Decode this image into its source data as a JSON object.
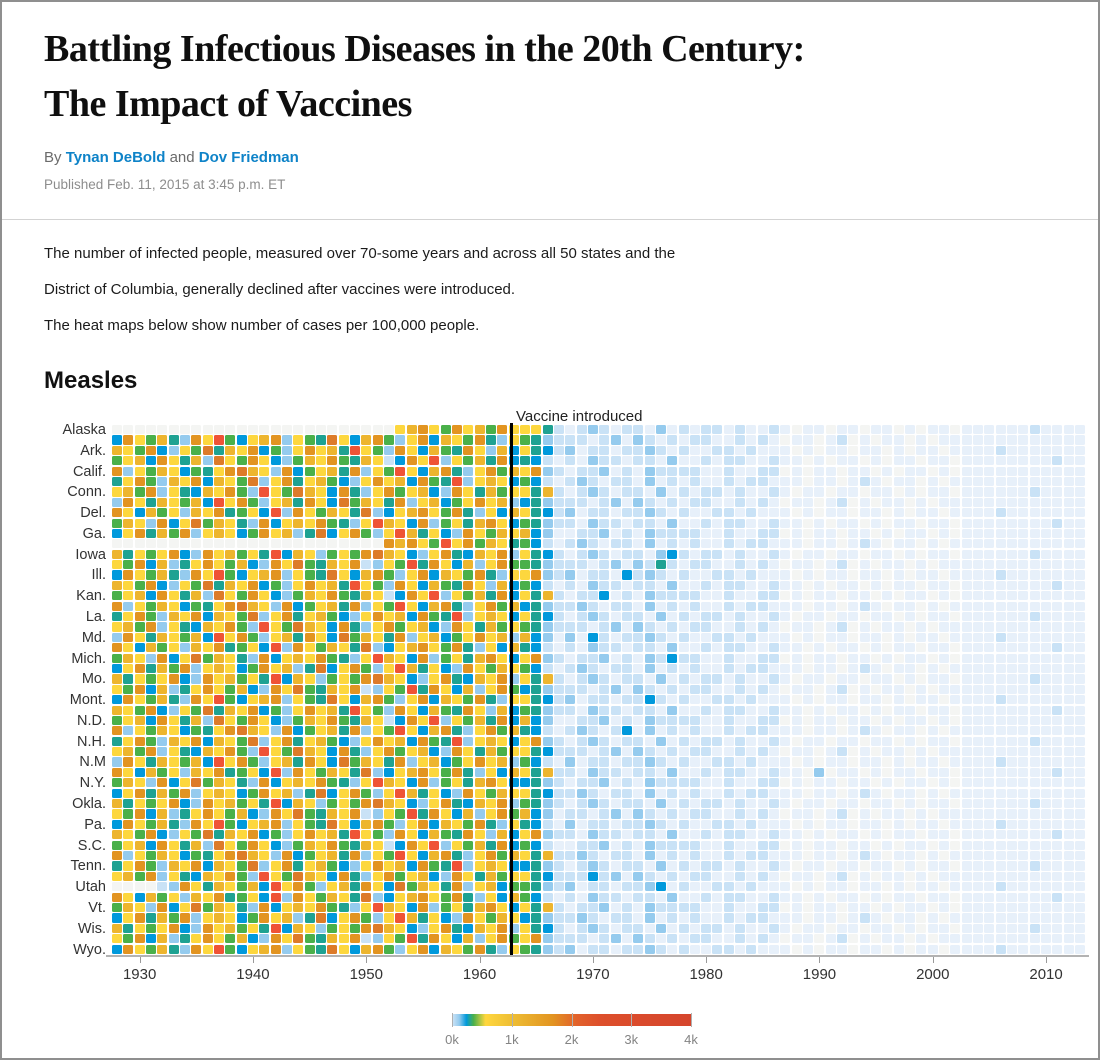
{
  "header": {
    "title_line1": "Battling Infectious Diseases in the 20th Century:",
    "title_line2": "The Impact of Vaccines",
    "byline_prefix": "By",
    "author1": "Tynan DeBold",
    "byline_connector": "and",
    "author2": "Dov Friedman",
    "published": "Published Feb. 11, 2015 at 3:45 p.m. ET"
  },
  "intro": {
    "para1_line1": "The number of infected people, measured over 70-some years and across all 50 states and the",
    "para1_line2": "District of Columbia, generally declined after vaccines were introduced.",
    "para2": "The heat maps below show number of cases per 100,000 people."
  },
  "section": {
    "heading": "Measles"
  },
  "chart_data": {
    "type": "heatmap",
    "title": "Measles",
    "unit": "cases per 100,000 people",
    "x_start_year": 1928,
    "x_end_year": 2013,
    "x_ticks": [
      "1930",
      "1940",
      "1950",
      "1960",
      "1970",
      "1980",
      "1990",
      "2000",
      "2010"
    ],
    "annotation": {
      "label": "Vaccine introduced",
      "year": 1963,
      "line_color": "#000000"
    },
    "row_labels": [
      "Alaska",
      "Ark.",
      "Calif.",
      "Conn.",
      "Del.",
      "Ga.",
      "Iowa",
      "Ill.",
      "Kan.",
      "La.",
      "Md.",
      "Mich.",
      "Mo.",
      "Mont.",
      "N.D.",
      "N.H.",
      "N.M",
      "N.Y.",
      "Okla.",
      "Pa.",
      "S.C.",
      "Tenn.",
      "Utah",
      "Vt.",
      "Wis.",
      "Wyo."
    ],
    "label_every": 2,
    "num_rows": 51,
    "value_range_cases": [
      0,
      4000
    ],
    "palette": {
      "0": "#f4f5f3",
      "1": "#e7f0fa",
      "2": "#c9e2f6",
      "3": "#95cbee",
      "4": "#6bb8e8",
      "5": "#0099dc",
      "6": "#1ea292",
      "7": "#4ab04a",
      "8": "#a5c13e",
      "9": "#fdd73e",
      "a": "#edb52e",
      "b": "#e29421",
      "c": "#dd7b29",
      "d": "#ef5336",
      "e": "#ce472e"
    },
    "legend": {
      "labels": [
        "0k",
        "1k",
        "2k",
        "3k",
        "4k"
      ],
      "tick_positions_pct": [
        0,
        25,
        50,
        75,
        100
      ],
      "gradient_stops": [
        {
          "pos": 0,
          "color": "#cfe4f6"
        },
        {
          "pos": 3,
          "color": "#95cbee"
        },
        {
          "pos": 6,
          "color": "#0099dc"
        },
        {
          "pos": 9,
          "color": "#4ab04a"
        },
        {
          "pos": 14,
          "color": "#ffd73e"
        },
        {
          "pos": 25,
          "color": "#eebe34"
        },
        {
          "pos": 42,
          "color": "#e29421"
        },
        {
          "pos": 52,
          "color": "#e2622b"
        },
        {
          "pos": 62,
          "color": "#dd4f2b"
        },
        {
          "pos": 100,
          "color": "#d5452c"
        }
      ]
    },
    "rows": [
      [
        "0000000000000000000000000",
        "9ab97b9a7b9",
        "9962",
        "1232122131",
        "212212112",
        "1011011011010110",
        "11111121111"
      ],
      [
        "5b97a63b9d759ab3976c95ab739b5a97b639",
        "7632",
        "2212313212",
        "122112121",
        "0110120101101011",
        "11111111111"
      ],
      [
        "a97b5397c6a9b5739b9a6d973b95a76b93a5",
        "9652",
        "3122122321",
        "211221211",
        "1010110110101101",
        "11121111111"
      ],
      [
        "79a5b96a3c97b9537a9b76a925b9d397a6b5",
        "6521",
        "2132212213",
        "112122112",
        "1101011010110110",
        "11111111211"
      ],
      [
        "b397a95769bca93b579a6b397d95ab639b7a",
        "9b32",
        "1223121322",
        "221121122",
        "0101101101011010",
        "11111111111"
      ],
      [
        "69b73a9b5a97c39b69a7539b9a5b76d39a95",
        "7521",
        "2321221312",
        "121121221",
        "1101101210110101",
        "11111111111"
      ],
      [
        "9a7b3965a9b73d97ca95b639b79a53b96a79",
        "96a2",
        "1232122131",
        "212212112",
        "1011011011010110",
        "11111121111"
      ],
      [
        "3b96a97a5d9b739a6b95c7a96b39a579b9a3",
        "5632",
        "2212313212",
        "122112121",
        "0110120101101011",
        "11111111111"
      ],
      [
        "b95a793a9b6795d3b97a96c359ab97b6395a",
        "9652",
        "3122122321",
        "211221211",
        "1010110110101101",
        "11121111111"
      ],
      [
        "7a93b59c7a963b59a9b7639da95b3796ab95",
        "7632",
        "2132212213",
        "112122112",
        "1101011010110110",
        "11111111211"
      ],
      [
        "59b6a7b39a957b9a36c59b739da6953b97a9",
        "a531",
        "1223121322",
        "221121122",
        "0101101101011010",
        "11111111111"
      ],
      [
        "000000000000000000000000",
        "bab97d9b7a96",
        "7521",
        "2321221312",
        "121121221",
        "1101101210110101",
        "11111111111"
      ],
      [
        "a6979b53b9a796d5a93797bca9539b65a9b3",
        "9652",
        "1232122135",
        "212212112",
        "1011011011010110",
        "11111121111"
      ],
      [
        "97b5a369b97a53b9c76a9b2397d6b95a39b7",
        "7632",
        "2212313262",
        "122112121",
        "0110120101101011",
        "11111111111"
      ],
      [
        "5b97a63b9d759ab3976c95ab739b5a97b639",
        "9b32",
        "3122152321",
        "211221211",
        "1010110110101101",
        "11121111111"
      ],
      [
        "a97b5397c6a9b5739b9a6d973b95a76b93a5",
        "7521",
        "2132212213",
        "112122112",
        "1101011010110110",
        "11111111211"
      ],
      [
        "79a5b96a3c97b9537a9b76a925b9d397a6b5",
        "96a2",
        "1225121322",
        "221121122",
        "0101101101011010",
        "11111111111"
      ],
      [
        "b397a95769bca93b579a6b397d95ab639b7a",
        "5632",
        "2321221312",
        "121121221",
        "1101101210110101",
        "11111111111"
      ],
      [
        "69b73a9b5a97c39b69a7539b9a5b76d39a95",
        "9652",
        "1232122131",
        "212212112",
        "1011011011010110",
        "11111121111"
      ],
      [
        "9a7b3965a9b73d97ca95b639b79a53b96a79",
        "7632",
        "2212313212",
        "122112121",
        "0110120101101011",
        "11111111111"
      ],
      [
        "3b96a97a5d9b739a6b95c7a96b39a579b9a3",
        "a531",
        "3152122321",
        "211221211",
        "1010110110101101",
        "11121111111"
      ],
      [
        "b95a793a9b6795d3b97a96c359ab97b6395a",
        "6521",
        "2132212213",
        "112122112",
        "1101011010110110",
        "11111111211"
      ],
      [
        "7a93b59c7a963b59a9b7639da95b3796ab95",
        "9b32",
        "1223121325",
        "221121122",
        "0101101101011010",
        "11111111111"
      ],
      [
        "59b6a7b39a957b9a36c59b739da6953b97a9",
        "7521",
        "2321221312",
        "121121221",
        "1101101210110101",
        "11111111111"
      ],
      [
        "a6979b53b9a796d5a93797bca9539b65a9b3",
        "96a2",
        "1232122131",
        "212212112",
        "1011011011010110",
        "11111121111"
      ],
      [
        "97b5a369b97a53b9c76a9b2397d6b95a39b7",
        "5632",
        "2212313212",
        "122112121",
        "0110120101101011",
        "11111111111"
      ],
      [
        "5b97a63b9d759ab3976c95ab739b5a97b639",
        "9652",
        "3122122521",
        "211221211",
        "1010110110101101",
        "11121111111"
      ],
      [
        "a97b5397c6a9b5739b9a6d973b95a76b93a5",
        "7632",
        "2132212213",
        "112122112",
        "1101011010110110",
        "11111111211"
      ],
      [
        "79a5b96a3c97b9537a9b76a925b9d397a6b5",
        "a531",
        "1223121322",
        "221121122",
        "0101101101011010",
        "11111111111"
      ],
      [
        "b397a95769bca93b579a6b397d95ab639b7a",
        "6521",
        "2321251312",
        "121121221",
        "1101101210110101",
        "11111111111"
      ],
      [
        "69b73a9b5a97c39b69a7539b9a5b76d39a95",
        "9b32",
        "1232122131",
        "212212112",
        "1011011011010110",
        "11111121111"
      ],
      [
        "9a7b3965a9b73d97ca95b639b79a53b96a79",
        "9652",
        "2212313212",
        "122112121",
        "0110120101101011",
        "11111111111"
      ],
      [
        "3b96a97a5d9b739a6b95c7a96b39a579b9a3",
        "7521",
        "3122122321",
        "211221211",
        "1010110110101101",
        "11121111111"
      ],
      [
        "b95a793a9b6795d3b97a96c359ab97b6395a",
        "96a2",
        "2132212213",
        "112122112",
        "1103011010110110",
        "11111111211"
      ],
      [
        "7a93b59c7a963b59a9b7639da95b3796ab95",
        "5632",
        "1223121322",
        "221121122",
        "0101101101011010",
        "11111111111"
      ],
      [
        "59b6a7b39a957b9a36c59b739da6953b97a9",
        "9652",
        "2321221312",
        "121121221",
        "1101101210110101",
        "11111111111"
      ],
      [
        "a6979b53b9a796d5a93797bca9539b65a9b3",
        "7632",
        "1232122131",
        "212212112",
        "1011011011010110",
        "11111121111"
      ],
      [
        "97b5a369b97a53b9c76a9b2397d6b95a39b7",
        "a531",
        "2212313212",
        "122112121",
        "0110120101101011",
        "11111111111"
      ],
      [
        "5b97a63b9d759ab3976c95ab739b5a97b639",
        "6521",
        "3122122321",
        "211221211",
        "1010110110101101",
        "11121111111"
      ],
      [
        "a97b5397c6a9b5739b9a6d973b95a76b93a5",
        "9b32",
        "2132212213",
        "112122112",
        "1101011010110110",
        "11111111211"
      ],
      [
        "79a5b96a3c97b9537a9b76a925b9d397a6b5",
        "7521",
        "1223121322",
        "221121122",
        "0101101101011010",
        "11111111111"
      ],
      [
        "b397a95769bca93b579a6b397d95ab639b7a",
        "96a2",
        "2321221312",
        "121121221",
        "1101101210110101",
        "11111111111"
      ],
      [
        "69b73a9b5a97c39b69a7539b9a5b76d39a95",
        "5632",
        "1232122131",
        "212212112",
        "1011011011010110",
        "11111121111"
      ],
      [
        "9a7b3965a9b73d97ca95b639b79a53b96a79",
        "9652",
        "2252313212",
        "122112121",
        "0110120101101011",
        "11111111111"
      ],
      [
        "00002",
        "3b96a97a5d9b739a6b95c7a96b39a57",
        "7632",
        "3122122351",
        "211221211",
        "1010110110101101",
        "11121111111"
      ],
      [
        "b95a793a9b6795d3b97a96c359ab97b6395a",
        "7521",
        "2132212213",
        "112122112",
        "1101011010110110",
        "11111111211"
      ],
      [
        "7a93b59c7a963b59a9b7639da95b3796ab95",
        "96a2",
        "1223121322",
        "221121122",
        "0101101101011010",
        "11111111111"
      ],
      [
        "59b6a7b39a957b9a36c59b739da6953b97a9",
        "5632",
        "2321221312",
        "121121221",
        "1101101210110101",
        "11111111111"
      ],
      [
        "a6979b53b9a796d5a93797bca9539b65a9b3",
        "9652",
        "1232122131",
        "212212112",
        "1011011011010110",
        "11111121111"
      ],
      [
        "97b5a369b97a53b9c76a9b2397d6b95a39b7",
        "9b32",
        "2212313212",
        "122112121",
        "0110120101101011",
        "11111111111"
      ],
      [
        "5b97a63b9d759ab3976c95ab739b5a97b639",
        "7632",
        "3122122321",
        "211221211",
        "1010110110101101",
        "11121111111"
      ]
    ]
  }
}
